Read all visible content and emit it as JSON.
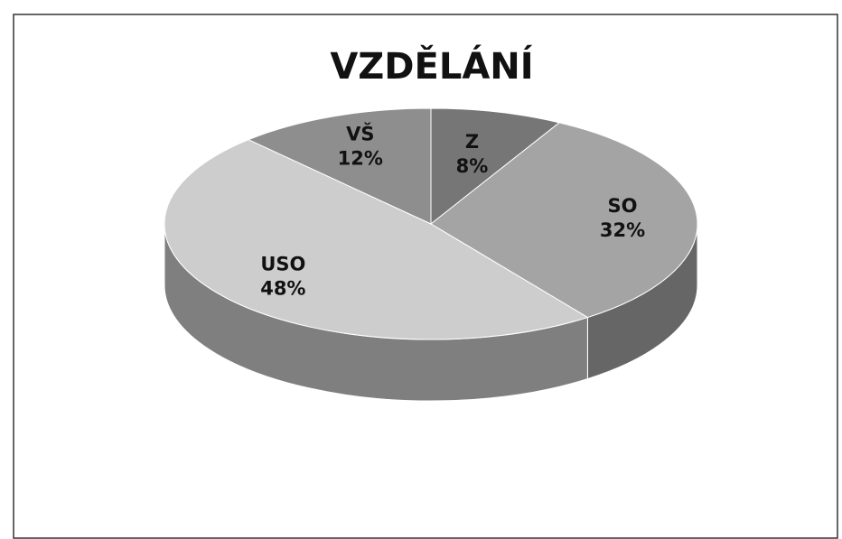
{
  "chart_data": {
    "type": "pie3d",
    "title": "VZDĚLÁNÍ",
    "categories": [
      "Z",
      "SO",
      "USO",
      "VŠ"
    ],
    "values": [
      8,
      32,
      48,
      12
    ],
    "value_labels": [
      "8%",
      "32%",
      "48%",
      "12%"
    ],
    "colors": [
      "#767676",
      "#a4a4a4",
      "#cdcdcd",
      "#8e8e8e"
    ]
  }
}
